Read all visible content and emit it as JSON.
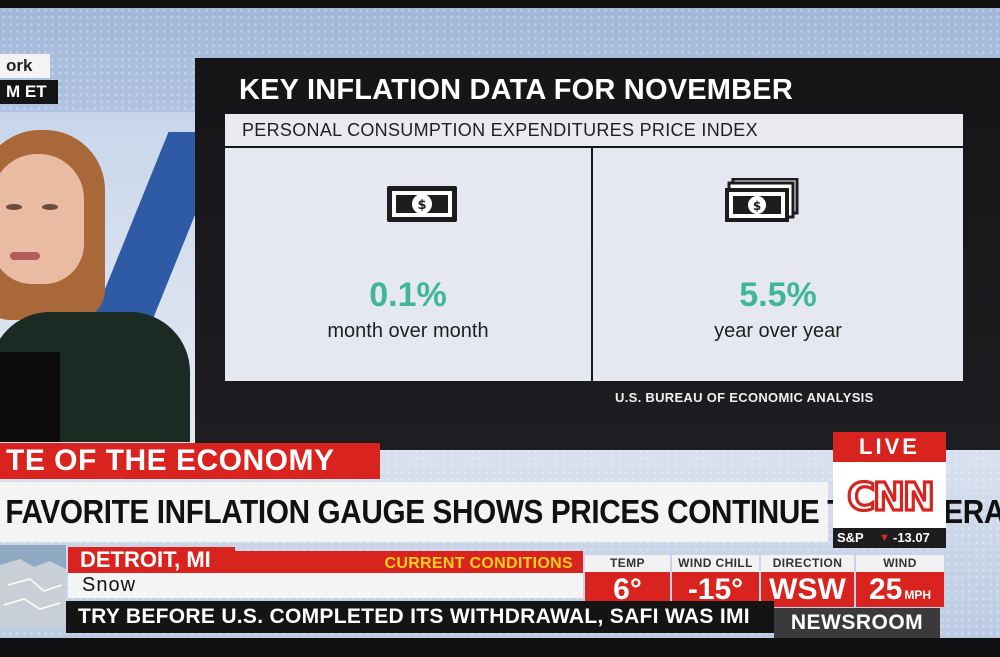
{
  "location_fragment": {
    "line1": "ork",
    "line2": "M ET"
  },
  "graphic": {
    "title": "KEY INFLATION DATA FOR NOVEMBER",
    "subtitle": "PERSONAL CONSUMPTION EXPENDITURES PRICE INDEX",
    "metrics": [
      {
        "value": "0.1%",
        "label": "month over month",
        "icon": "single-bill-icon"
      },
      {
        "value": "5.5%",
        "label": "year over year",
        "icon": "stack-of-bills-icon"
      }
    ],
    "source": "U.S. BUREAU OF ECONOMIC ANALYSIS",
    "accent_color": "#3fb69b"
  },
  "lower_third": {
    "section": "TE OF THE ECONOMY",
    "headline": "FAVORITE INFLATION GAUGE SHOWS PRICES CONTINUE TO MODERATE"
  },
  "network": {
    "live_label": "LIVE",
    "logo_text": "CNN",
    "market_index": "S&P",
    "market_change": "-13.07",
    "brand_color": "#d8231f"
  },
  "weather": {
    "city": "DETROIT, MI",
    "section_label": "CURRENT CONDITIONS",
    "condition": "Snow",
    "columns": [
      {
        "header": "TEMP",
        "value": "6°",
        "unit": ""
      },
      {
        "header": "WIND CHILL",
        "value": "-15°",
        "unit": ""
      },
      {
        "header": "DIRECTION",
        "value": "WSW",
        "unit": ""
      },
      {
        "header": "WIND",
        "value": "25",
        "unit": "MPH"
      }
    ]
  },
  "crawl_text": "TRY BEFORE U.S. COMPLETED ITS WITHDRAWAL, SAFI WAS IMI",
  "show_name": "NEWSROOM"
}
